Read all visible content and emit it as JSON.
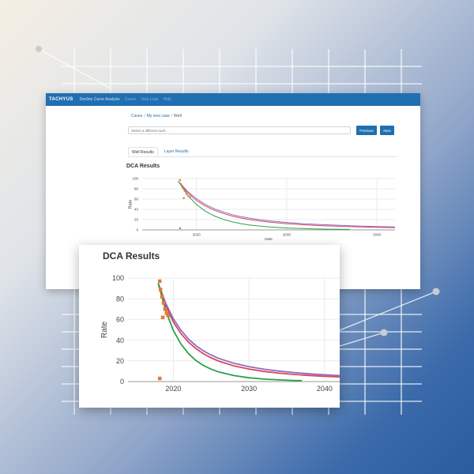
{
  "app": {
    "brand": "TACHYUS",
    "nav_links": [
      "Decline Curve Analysis",
      "Cases",
      "Task Logs",
      "Help"
    ]
  },
  "breadcrumb": {
    "cases": "Cases",
    "case": "My new case",
    "current": "Well"
  },
  "well_select": {
    "placeholder": "Select a different well ..."
  },
  "buttons": {
    "previous": "Previous",
    "next": "Next"
  },
  "tabs": [
    "Well Results",
    "Layer Results"
  ],
  "section_title": "DCA Results",
  "colors": {
    "navbar": "#1f6fb2",
    "points": "#e07a3a",
    "fit_purple": "#8e6bbf",
    "fit_red": "#d9455f",
    "fit_green": "#2aa14a"
  },
  "chart_data": {
    "type": "scatter",
    "title": "DCA Results",
    "xlabel": "Date",
    "ylabel": "Rate",
    "xlim": [
      2014,
      2042
    ],
    "ylim": [
      0,
      100
    ],
    "yticks": [
      0,
      20,
      40,
      60,
      80,
      100
    ],
    "xticks": [
      2020,
      2030,
      2040
    ],
    "grid": true,
    "points": {
      "x": [
        2018.2,
        2018.3,
        2018.5,
        2018.7,
        2018.9,
        2019.1,
        2019.3,
        2018.6,
        2018.2
      ],
      "y": [
        97,
        89,
        82,
        76,
        70,
        66,
        64,
        62,
        3
      ]
    },
    "series": [
      {
        "color": "#8e6bbf",
        "x": [
          2018,
          2019,
          2020,
          2021,
          2022,
          2023,
          2024,
          2025,
          2026,
          2028,
          2030,
          2032,
          2034,
          2036,
          2038,
          2040,
          2042
        ],
        "y": [
          95,
          75.4,
          60.7,
          49.6,
          41.1,
          34.6,
          29.6,
          25.6,
          22.4,
          17.7,
          14.4,
          11.9,
          10.1,
          8.7,
          7.5,
          6.6,
          5.8
        ]
      },
      {
        "color": "#d9455f",
        "x": [
          2018,
          2019,
          2020,
          2021,
          2022,
          2023,
          2024,
          2025,
          2026,
          2028,
          2030,
          2032,
          2034,
          2036,
          2038,
          2040,
          2042
        ],
        "y": [
          95,
          72.9,
          57.6,
          46.4,
          38.1,
          31.8,
          26.8,
          22.9,
          19.8,
          15.2,
          12.1,
          9.8,
          8.1,
          6.9,
          5.9,
          5.1,
          4.5
        ]
      },
      {
        "color": "#2aa14a",
        "x": [
          2018,
          2019,
          2020,
          2021,
          2022,
          2023,
          2024,
          2025,
          2026,
          2028,
          2030,
          2032,
          2034,
          2036,
          2037
        ],
        "y": [
          95,
          68.2,
          49.5,
          36.3,
          27,
          20.3,
          15.5,
          12,
          9.3,
          5.8,
          3.7,
          2.4,
          1.6,
          1.1,
          0.9
        ]
      }
    ]
  }
}
